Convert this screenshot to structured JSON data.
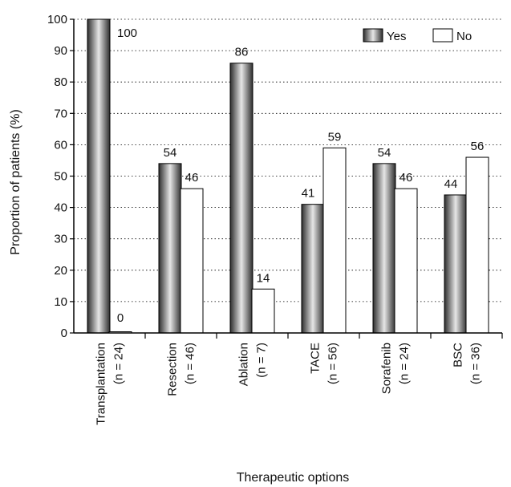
{
  "chart_data": {
    "type": "bar",
    "xlabel": "Therapeutic options",
    "ylabel": "Proportion of patients (%)",
    "ylim": [
      0,
      100
    ],
    "yticks": [
      0,
      10,
      20,
      30,
      40,
      50,
      60,
      70,
      80,
      90,
      100
    ],
    "grid": "horizontal dotted",
    "legend_position": "top-right",
    "categories": [
      [
        "Transplantation",
        "(n = 24)"
      ],
      [
        "Resection",
        "(n = 46)"
      ],
      [
        "Ablation",
        "(n = 7)"
      ],
      [
        "TACE",
        "(n = 56)"
      ],
      [
        "Sorafenib",
        "(n = 24)"
      ],
      [
        "BSC",
        "(n = 36)"
      ]
    ],
    "series": [
      {
        "name": "Yes",
        "values": [
          100,
          54,
          86,
          41,
          54,
          44
        ],
        "style": "gray-gradient"
      },
      {
        "name": "No",
        "values": [
          0,
          46,
          14,
          59,
          46,
          56
        ],
        "style": "white"
      }
    ],
    "colors": {
      "yes_dark": "#3a3a3a",
      "yes_light": "#e8e8e8",
      "no_fill": "#ffffff",
      "stroke": "#000000"
    }
  }
}
